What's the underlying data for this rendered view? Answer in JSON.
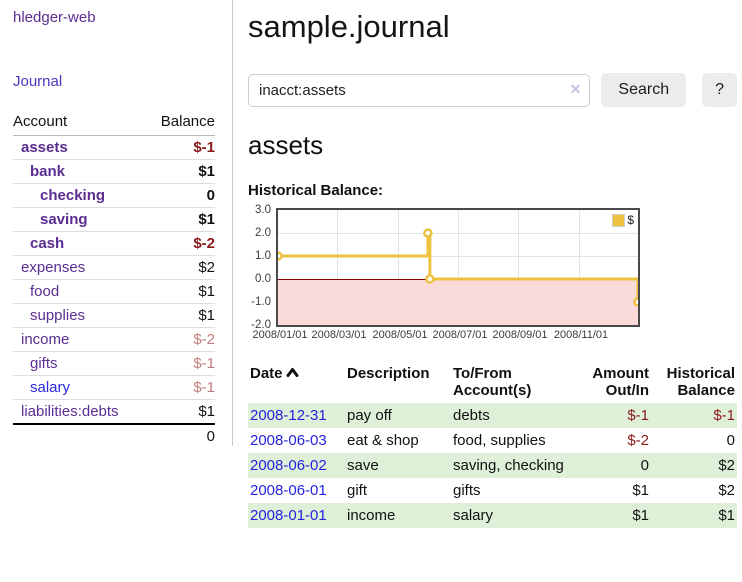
{
  "app": {
    "title": "hledger-web"
  },
  "nav": {
    "journal": "Journal"
  },
  "sidebar": {
    "columns": {
      "account": "Account",
      "balance": "Balance"
    },
    "accounts": [
      {
        "name": "assets",
        "balance": "$-1"
      },
      {
        "name": "bank",
        "balance": "$1"
      },
      {
        "name": "checking",
        "balance": "0"
      },
      {
        "name": "saving",
        "balance": "$1"
      },
      {
        "name": "cash",
        "balance": "$-2"
      },
      {
        "name": "expenses",
        "balance": "$2"
      },
      {
        "name": "food",
        "balance": "$1"
      },
      {
        "name": "supplies",
        "balance": "$1"
      },
      {
        "name": "income",
        "balance": "$-2"
      },
      {
        "name": "gifts",
        "balance": "$-1"
      },
      {
        "name": "salary",
        "balance": "$-1"
      },
      {
        "name": "liabilities:debts",
        "balance": "$1"
      }
    ],
    "total": "0"
  },
  "header": {
    "title": "sample.journal"
  },
  "search": {
    "value": "inacct:assets",
    "clear_icon": "✕",
    "button_label": "Search",
    "help_label": "?"
  },
  "account_page": {
    "title": "assets",
    "chart_label": "Historical Balance:"
  },
  "chart_data": {
    "type": "line",
    "style": "step-after",
    "series": [
      {
        "name": "$",
        "points": [
          [
            "2008-01-01",
            1
          ],
          [
            "2008-06-01",
            2
          ],
          [
            "2008-06-03",
            0
          ],
          [
            "2008-12-31",
            -1
          ]
        ]
      }
    ],
    "x_range": [
      "2008-01-01",
      "2008-12-31"
    ],
    "x_ticks": [
      "2008/01/01",
      "2008/03/01",
      "2008/05/01",
      "2008/07/01",
      "2008/09/01",
      "2008/11/01"
    ],
    "y_tick_labels": [
      "3.0",
      "2.0",
      "1.0",
      "0.0",
      "-1.0",
      "-2.0"
    ],
    "ylim": [
      -2,
      3
    ],
    "legend": "$",
    "legend_position": "top-right",
    "grid": true,
    "negative_region_shaded": true
  },
  "register": {
    "columns": [
      "Date",
      "Description",
      "To/From Account(s)",
      "Amount Out/In",
      "Historical Balance"
    ],
    "rows": [
      {
        "date": "2008-12-31",
        "description": "pay off",
        "accounts": "debts",
        "amount": "$-1",
        "balance": "$-1"
      },
      {
        "date": "2008-06-03",
        "description": "eat & shop",
        "accounts": "food, supplies",
        "amount": "$-2",
        "balance": "0"
      },
      {
        "date": "2008-06-02",
        "description": "save",
        "accounts": "saving, checking",
        "amount": "0",
        "balance": "$2"
      },
      {
        "date": "2008-06-01",
        "description": "gift",
        "accounts": "gifts",
        "amount": "$1",
        "balance": "$2"
      },
      {
        "date": "2008-01-01",
        "description": "income",
        "accounts": "salary",
        "amount": "$1",
        "balance": "$1"
      }
    ]
  },
  "colors": {
    "link_purple": "#5b2d91",
    "link_blue": "#2323e0",
    "negative": "#8b1a1a",
    "negative_muted": "#c17d7d",
    "row_green": "#dff0d8",
    "chart_line": "#edc240",
    "chart_negative_fill": "#fbdada",
    "chart_zero_line": "#8b0000"
  }
}
